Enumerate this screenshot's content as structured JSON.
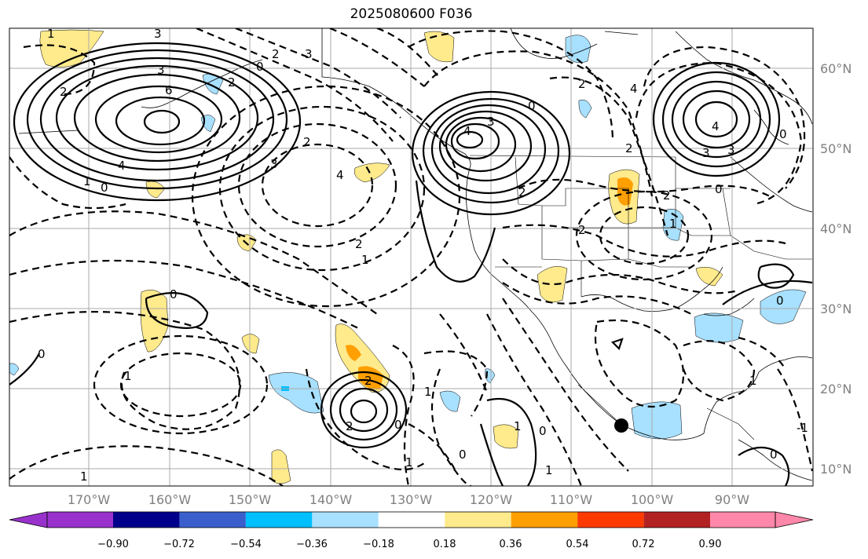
{
  "title": "2025080600 F036",
  "map": {
    "lat_ticks": [
      "60°N",
      "50°N",
      "40°N",
      "30°N",
      "20°N",
      "10°N"
    ],
    "lon_ticks": [
      "170°W",
      "160°W",
      "150°W",
      "140°W",
      "130°W",
      "120°W",
      "110°W",
      "100°W",
      "90°W"
    ],
    "contour_labels": [
      "1",
      "3",
      "3",
      "2",
      "2",
      "6",
      "0",
      "2",
      "3",
      "4",
      "1",
      "0",
      "3",
      "4",
      "2",
      "0",
      "3",
      "4",
      "2",
      "2",
      "4",
      "3",
      "3",
      "0",
      "4",
      "0",
      "2",
      "1",
      "2",
      "0",
      "0",
      "1",
      "2",
      "2",
      "1",
      "1",
      "0",
      "1",
      "0",
      "1",
      "0",
      "1",
      "0",
      "-1",
      "0",
      "1",
      "1",
      "2",
      "2"
    ],
    "shading_colors": {
      "pos1": "#ffea8c",
      "pos2": "#ff9f00",
      "neg1": "#a8e0ff",
      "neg2": "#00bfff"
    },
    "marker": "filled-circle"
  },
  "colorbar": {
    "ticks": [
      "−0.90",
      "−0.72",
      "−0.54",
      "−0.36",
      "−0.18",
      "0.18",
      "0.36",
      "0.54",
      "0.72",
      "0.90"
    ],
    "colors": [
      "#9932cc",
      "#00008b",
      "#3a5fcd",
      "#00bfff",
      "#a8e0ff",
      "#ffffff",
      "#ffea8c",
      "#ff9f00",
      "#ff3a00",
      "#b22222",
      "#ff88aa"
    ]
  }
}
